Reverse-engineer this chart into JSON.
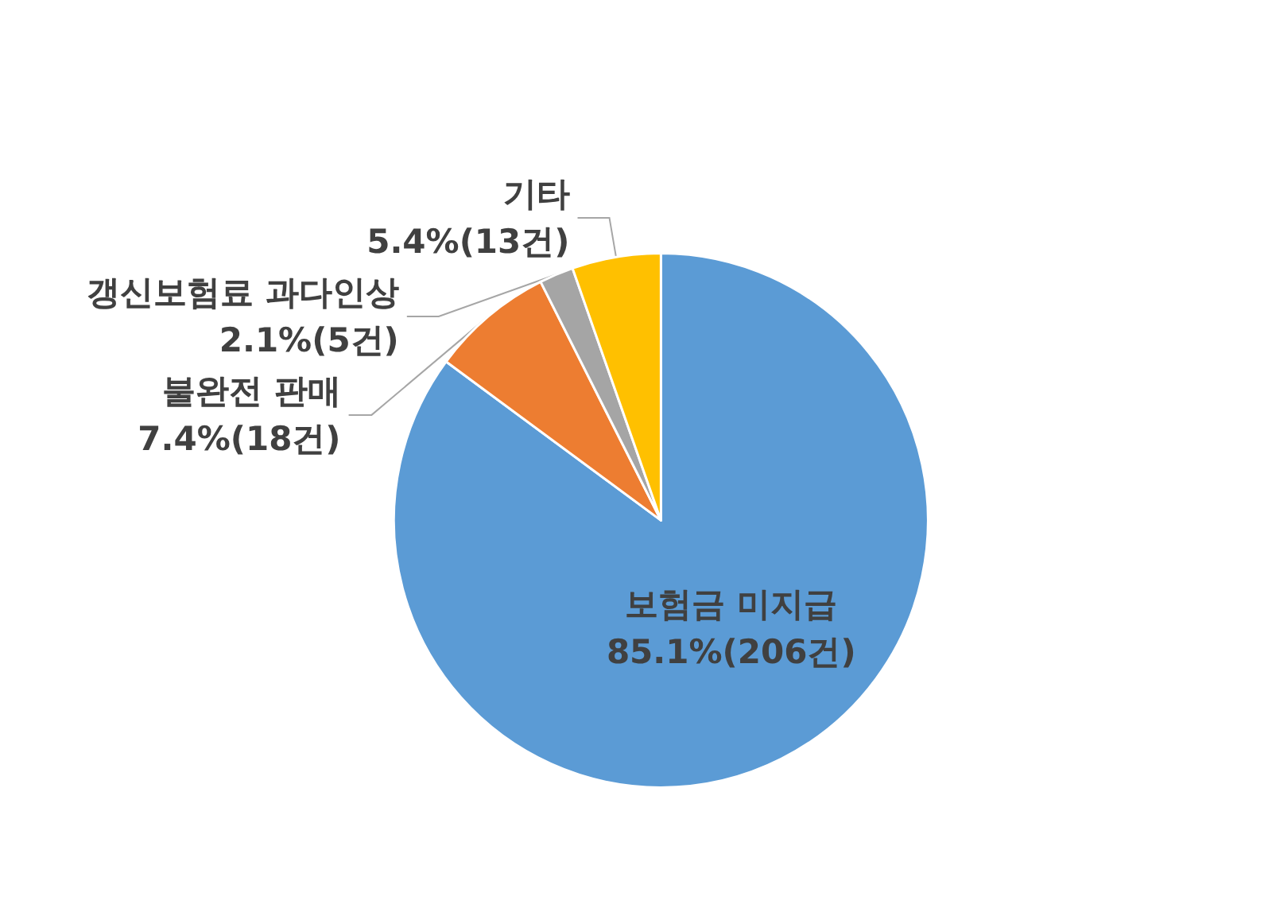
{
  "chart_data": {
    "type": "pie",
    "categories": [
      "보험금 미지급",
      "불완전 판매",
      "갱신보험료 과다인상",
      "기타"
    ],
    "values": [
      206,
      18,
      5,
      13
    ],
    "value_labels": [
      "85.1%(206건)",
      "7.4%(18건)",
      "2.1%(5건)",
      "5.4%(13건)"
    ],
    "colors": [
      "#5b9bd5",
      "#ed7d31",
      "#a5a5a5",
      "#ffc000"
    ]
  }
}
